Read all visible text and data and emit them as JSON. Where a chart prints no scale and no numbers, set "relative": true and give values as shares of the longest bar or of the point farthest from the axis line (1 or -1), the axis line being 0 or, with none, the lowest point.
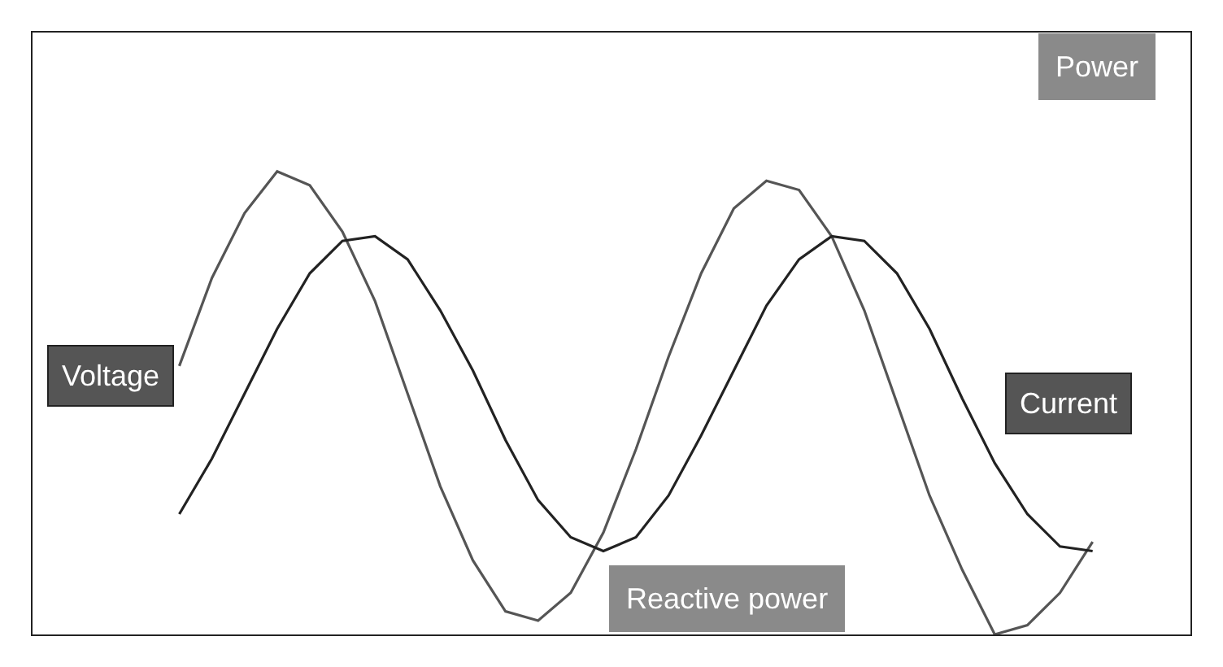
{
  "chart_data": {
    "type": "line",
    "relative": true,
    "legend": false,
    "marker": "none",
    "line_style": "solid",
    "tick_labels": false,
    "categories": [
      null,
      null,
      null,
      null,
      null,
      null,
      null,
      null,
      null,
      null,
      null,
      null,
      null,
      null,
      null,
      null,
      null,
      null,
      null,
      null,
      null,
      null,
      null,
      null,
      null,
      null,
      null,
      null,
      null
    ],
    "series": [
      {
        "name": "Voltage",
        "color": "#555555",
        "values": [
          0.58,
          0.77,
          0.91,
          1.0,
          0.97,
          0.87,
          0.72,
          0.52,
          0.32,
          0.16,
          0.05,
          0.03,
          0.09,
          0.22,
          0.4,
          0.6,
          0.78,
          0.92,
          0.98,
          0.96,
          0.86,
          0.7,
          0.5,
          0.3,
          0.14,
          0.0,
          0.02,
          0.09,
          0.2
        ]
      },
      {
        "name": "Current",
        "color": "#222222",
        "values": [
          0.26,
          0.38,
          0.52,
          0.66,
          0.78,
          0.85,
          0.86,
          0.81,
          0.7,
          0.57,
          0.42,
          0.29,
          0.21,
          0.18,
          0.21,
          0.3,
          0.43,
          0.57,
          0.71,
          0.81,
          0.86,
          0.85,
          0.78,
          0.66,
          0.51,
          0.37,
          0.26,
          0.19,
          0.18
        ]
      }
    ],
    "annotations": [
      "Power",
      "Reactive power"
    ]
  }
}
